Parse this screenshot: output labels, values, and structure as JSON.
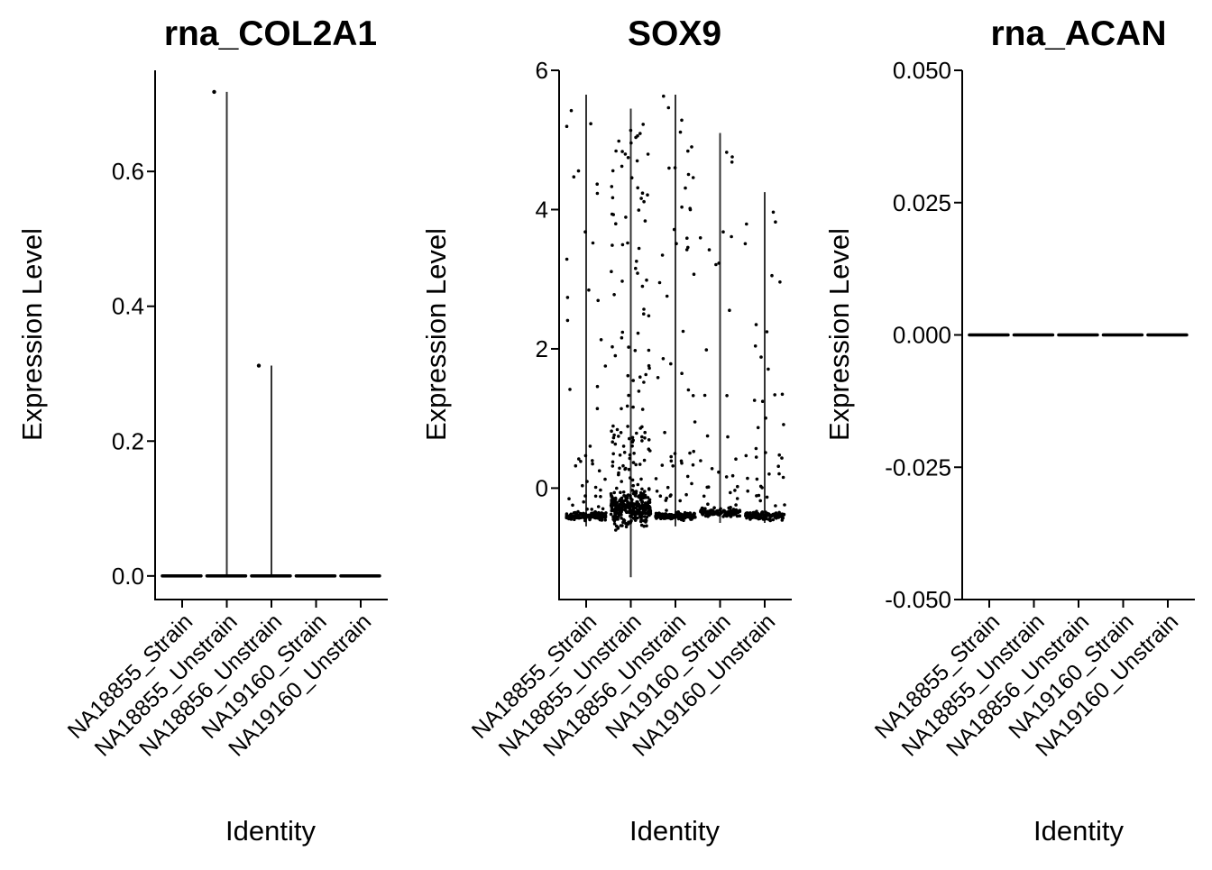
{
  "chart_data": [
    {
      "type": "violin",
      "title": "rna_COL2A1",
      "xlabel": "Identity",
      "ylabel": "Expression Level",
      "categories": [
        "NA18855_Strain",
        "NA18855_Unstrain",
        "NA18856_Unstrain",
        "NA19160_Strain",
        "NA19160_Unstrain"
      ],
      "ylim": [
        -0.035,
        0.75
      ],
      "yticks": [
        0.0,
        0.2,
        0.4,
        0.6
      ],
      "ytick_labels": [
        "0.0",
        "0.2",
        "0.4",
        "0.6"
      ],
      "baseline": [
        0,
        0,
        0,
        0,
        0
      ],
      "max": [
        0,
        0.718,
        0.312,
        0,
        0
      ],
      "outliers": [
        {
          "category": 1,
          "value": 0.718
        },
        {
          "category": 2,
          "value": 0.312
        }
      ]
    },
    {
      "type": "violin",
      "title": "SOX9",
      "xlabel": "Identity",
      "ylabel": "Expression Level",
      "categories": [
        "NA18855_Strain",
        "NA18855_Unstrain",
        "NA18856_Unstrain",
        "NA19160_Strain",
        "NA19160_Unstrain"
      ],
      "ylim": [
        -1.6,
        6.0
      ],
      "yticks": [
        0,
        2,
        4,
        6
      ],
      "ytick_labels": [
        "0",
        "2",
        "4",
        "6"
      ],
      "baseline": [
        -0.4,
        -0.3,
        -0.4,
        -0.35,
        -0.4
      ],
      "min": [
        -0.55,
        -1.28,
        -0.55,
        -0.5,
        -0.5
      ],
      "max": [
        5.65,
        5.45,
        5.65,
        5.1,
        4.25
      ]
    },
    {
      "type": "violin",
      "title": "rna_ACAN",
      "xlabel": "Identity",
      "ylabel": "Expression Level",
      "categories": [
        "NA18855_Strain",
        "NA18855_Unstrain",
        "NA18856_Unstrain",
        "NA19160_Strain",
        "NA19160_Unstrain"
      ],
      "ylim": [
        -0.05,
        0.05
      ],
      "yticks": [
        -0.05,
        -0.025,
        0.0,
        0.025,
        0.05
      ],
      "ytick_labels": [
        "-0.050",
        "-0.025",
        "0.000",
        "0.025",
        "0.050"
      ],
      "baseline": [
        0,
        0,
        0,
        0,
        0
      ],
      "max": [
        0,
        0,
        0,
        0,
        0
      ]
    }
  ]
}
